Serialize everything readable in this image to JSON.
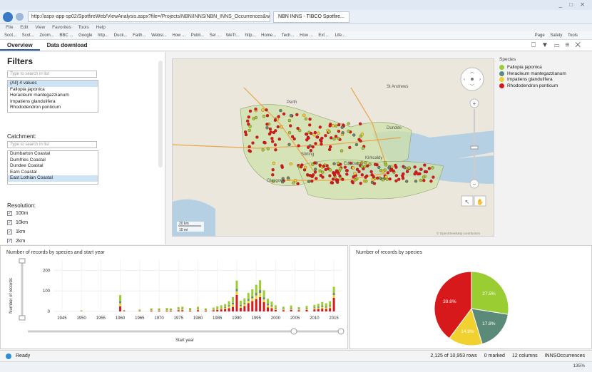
{
  "browser": {
    "url": "http://aspx-app-sp02/SpotfireWeb/ViewAnalysis.aspx?file=/Projects/NBN/INNS/NBN_INNS_Occurrences&waid=",
    "tabs": [
      {
        "label": "NBN INNS - TIBCO Spotfire...",
        "active": true
      }
    ],
    "menu": [
      "File",
      "Edit",
      "View",
      "Favorites",
      "Tools",
      "Help"
    ],
    "favorites": [
      "Scot...",
      "Scot...",
      "Zoom...",
      "BBC ...",
      "Google",
      "http...",
      "Duck...",
      "Faith...",
      "Websi...",
      "How ...",
      "Publi...",
      "Sel ...",
      "WeTr...",
      "http...",
      "Home...",
      "Tech...",
      "How ...",
      "Ext ...",
      "Life..."
    ],
    "toolbar_right": [
      "Page",
      "Safety",
      "Tools"
    ],
    "zoom": "135%"
  },
  "app": {
    "tabs": [
      {
        "label": "Overview",
        "active": true
      },
      {
        "label": "Data download",
        "active": false
      }
    ]
  },
  "filters": {
    "title": "Filters",
    "species": {
      "search_placeholder": "Type to search in list",
      "items": [
        "(All) 4 values",
        "Fallopia japonica",
        "Heracleum mantegazzianum",
        "Impatiens glandulifera",
        "Rhododendron ponticum"
      ]
    },
    "catchment": {
      "label": "Catchment:",
      "search_placeholder": "Type to search in list",
      "items": [
        "Dumbarton Coastal",
        "Dumfries Coastal",
        "Dundee Coastal",
        "Earn Coastal",
        "East Lothian Coastal"
      ]
    },
    "resolution": {
      "label": "Resolution:",
      "items": [
        "100m",
        "10km",
        "1km",
        "2km"
      ]
    }
  },
  "map": {
    "places": [
      "Perth",
      "St Andrews",
      "Dundee",
      "Edinburgh",
      "Glasgow",
      "Stirling",
      "Kirkcaldy"
    ],
    "scale": [
      "20 km",
      "10 mi"
    ],
    "attribution": "© OpenStreetMap contributors"
  },
  "legend": {
    "title": "Species",
    "items": [
      {
        "label": "Fallopia japonica",
        "color": "#9acd32"
      },
      {
        "label": "Heracleum mantegazzianum",
        "color": "#5b8a78"
      },
      {
        "label": "Impatiens glandulifera",
        "color": "#f0d130"
      },
      {
        "label": "Rhododendron ponticum",
        "color": "#d7191c"
      }
    ]
  },
  "chart_data": [
    {
      "type": "bar",
      "title": "Number of records by species and start year",
      "xlabel": "Start year",
      "ylabel": "Number of records",
      "xlim": [
        1943,
        2017
      ],
      "ylim": [
        0,
        250
      ],
      "yticks": [
        0,
        100,
        200
      ],
      "xticks": [
        1945,
        1950,
        1955,
        1960,
        1965,
        1970,
        1975,
        1980,
        1985,
        1990,
        1995,
        2000,
        2005,
        2010,
        2015
      ],
      "stacked": true,
      "series_order": [
        "Rhododendron ponticum",
        "Impatiens glandulifera",
        "Heracleum mantegazzianum",
        "Fallopia japonica"
      ],
      "x": [
        1950,
        1960,
        1961,
        1965,
        1968,
        1970,
        1972,
        1973,
        1975,
        1976,
        1978,
        1980,
        1982,
        1984,
        1985,
        1986,
        1987,
        1988,
        1989,
        1990,
        1991,
        1992,
        1993,
        1994,
        1995,
        1996,
        1997,
        1998,
        1999,
        2000,
        2002,
        2004,
        2006,
        2008,
        2010,
        2011,
        2012,
        2013,
        2014,
        2015
      ],
      "series": [
        {
          "name": "Fallopia japonica",
          "values": [
            2,
            30,
            3,
            4,
            6,
            6,
            8,
            6,
            8,
            10,
            8,
            10,
            6,
            8,
            10,
            12,
            14,
            20,
            28,
            40,
            20,
            22,
            30,
            34,
            40,
            48,
            34,
            24,
            18,
            12,
            10,
            12,
            8,
            10,
            12,
            14,
            18,
            16,
            20,
            30
          ]
        },
        {
          "name": "Heracleum mantegazzianum",
          "values": [
            1,
            10,
            1,
            1,
            2,
            2,
            2,
            2,
            3,
            3,
            2,
            3,
            2,
            2,
            3,
            3,
            4,
            6,
            8,
            12,
            6,
            6,
            8,
            10,
            12,
            14,
            10,
            8,
            6,
            4,
            3,
            4,
            3,
            4,
            4,
            5,
            6,
            5,
            6,
            10
          ]
        },
        {
          "name": "Impatiens glandulifera",
          "values": [
            1,
            15,
            1,
            2,
            3,
            3,
            3,
            3,
            4,
            4,
            3,
            4,
            3,
            3,
            4,
            5,
            6,
            8,
            12,
            18,
            8,
            10,
            12,
            14,
            18,
            20,
            14,
            10,
            8,
            6,
            4,
            5,
            4,
            5,
            6,
            6,
            8,
            7,
            8,
            14
          ]
        },
        {
          "name": "Rhododendron ponticum",
          "values": [
            1,
            25,
            2,
            2,
            4,
            4,
            4,
            4,
            6,
            6,
            4,
            6,
            4,
            6,
            8,
            10,
            12,
            16,
            22,
            80,
            18,
            26,
            40,
            50,
            60,
            70,
            45,
            20,
            16,
            8,
            6,
            8,
            6,
            8,
            10,
            12,
            14,
            12,
            16,
            66
          ]
        }
      ]
    },
    {
      "type": "pie",
      "title": "Number of records by species",
      "slices": [
        {
          "name": "Rhododendron ponticum",
          "value": 39.8,
          "label": "39.8%",
          "color": "#d7191c"
        },
        {
          "name": "Fallopia japonica",
          "value": 27.5,
          "label": "27.5%",
          "color": "#9acd32"
        },
        {
          "name": "Heracleum mantegazzianum",
          "value": 17.8,
          "label": "17.8%",
          "color": "#5b8a78"
        },
        {
          "name": "Impatiens glandulifera",
          "value": 14.9,
          "label": "14.9%",
          "color": "#f0d130"
        }
      ]
    }
  ],
  "status": {
    "ready": "Ready",
    "rows": "2,125 of 10,953 rows",
    "marked": "0 marked",
    "columns": "12 columns",
    "table": "INNSOccurrences"
  }
}
